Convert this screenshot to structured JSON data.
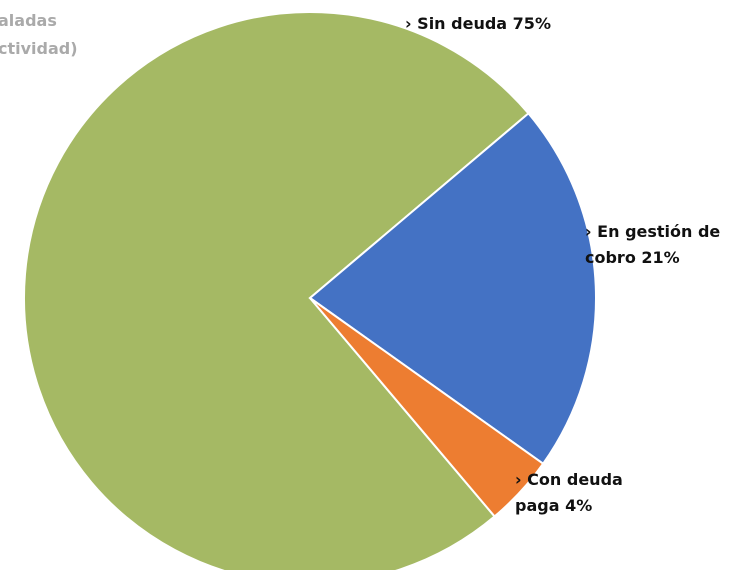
{
  "chart_data": {
    "type": "pie",
    "side_text": [
      "aladas",
      "ctividad)"
    ],
    "categories": [
      "Sin deuda",
      "En gestión de cobro",
      "Con deuda paga"
    ],
    "values": [
      75,
      21,
      4
    ],
    "value_labels": [
      "75%",
      "21%",
      "4%"
    ],
    "colors": [
      "#a5b964",
      "#4472c4",
      "#ed7d31"
    ]
  }
}
